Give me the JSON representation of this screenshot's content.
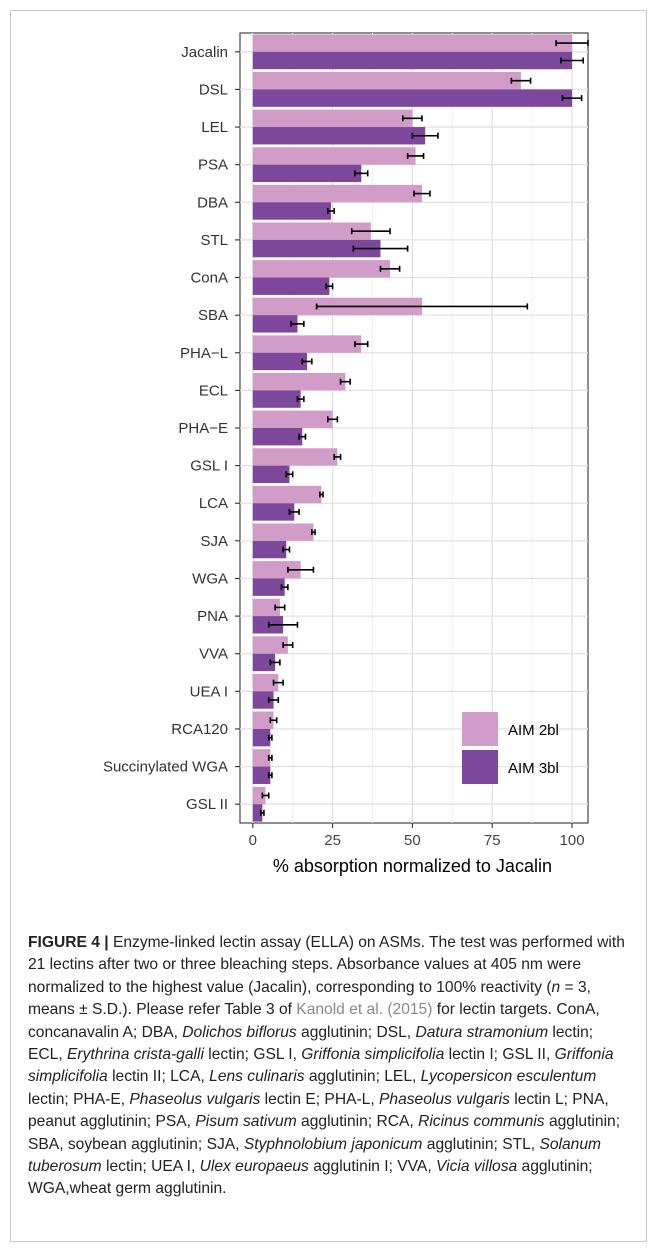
{
  "chart_data": {
    "type": "bar",
    "orientation": "horizontal",
    "categories": [
      "Jacalin",
      "DSL",
      "LEL",
      "PSA",
      "DBA",
      "STL",
      "ConA",
      "SBA",
      "PHA−L",
      "ECL",
      "PHA−E",
      "GSL I",
      "LCA",
      "SJA",
      "WGA",
      "PNA",
      "VVA",
      "UEA I",
      "RCA120",
      "Succinylated WGA",
      "GSL II"
    ],
    "series": [
      {
        "name": "AIM 2bl",
        "color": "#d19cc7",
        "values": [
          100,
          84,
          50,
          51,
          53,
          37,
          43,
          53,
          34,
          29,
          25,
          26.5,
          21.5,
          19,
          15,
          8.5,
          11,
          8,
          6.5,
          5.5,
          4
        ],
        "errors": [
          5,
          3,
          3,
          2.5,
          2.5,
          6,
          3,
          33,
          2,
          1.5,
          1.5,
          1,
          0.5,
          0.5,
          4,
          1.5,
          1.5,
          1.5,
          1,
          0.5,
          1
        ]
      },
      {
        "name": "AIM 3bl",
        "color": "#7d479c",
        "values": [
          100,
          100,
          54,
          34,
          24.5,
          40,
          24,
          14,
          17,
          15,
          15.5,
          11.5,
          13,
          10.5,
          10,
          9.5,
          7,
          6.5,
          5.5,
          5.5,
          3
        ],
        "errors": [
          3.5,
          3,
          4,
          2,
          1,
          8.5,
          1,
          2,
          1.5,
          1,
          1,
          1,
          1.5,
          1,
          1,
          4.5,
          1.5,
          1.5,
          0.5,
          0.5,
          0.5
        ]
      }
    ],
    "x_ticks": [
      0,
      25,
      50,
      75,
      100
    ],
    "xlim": [
      -4,
      105
    ],
    "xlabel": "% absorption normalized to Jacalin",
    "ylabel": "",
    "grid": true,
    "legend_position": "bottom-right"
  },
  "caption": {
    "label": "FIGURE 4 |",
    "parts": [
      {
        "t": " Enzyme-linked lectin assay (ELLA) on ASMs. The test was performed with 21 lectins after two or three bleaching steps. Absorbance values at 405 nm were normalized to the highest value (Jacalin), corresponding to 100% reactivity ("
      },
      {
        "t": "n",
        "i": true
      },
      {
        "t": " = 3, means ± S.D.). Please refer Table 3 of "
      },
      {
        "t": "Kanold et al. (2015)",
        "ref": true
      },
      {
        "t": " for lectin targets. ConA, concanavalin A; DBA, "
      },
      {
        "t": "Dolichos biflorus",
        "i": true
      },
      {
        "t": " agglutinin; DSL, "
      },
      {
        "t": "Datura stramonium",
        "i": true
      },
      {
        "t": " lectin; ECL, "
      },
      {
        "t": "Erythrina crista-galli",
        "i": true
      },
      {
        "t": " lectin; GSL I, "
      },
      {
        "t": "Griffonia simplicifolia",
        "i": true
      },
      {
        "t": " lectin I; GSL II, "
      },
      {
        "t": "Griffonia simplicifolia",
        "i": true
      },
      {
        "t": " lectin II; LCA, "
      },
      {
        "t": "Lens culinaris",
        "i": true
      },
      {
        "t": " agglutinin; LEL, "
      },
      {
        "t": "Lycopersicon esculentum",
        "i": true
      },
      {
        "t": " lectin; PHA-E, "
      },
      {
        "t": "Phaseolus vulgaris",
        "i": true
      },
      {
        "t": " lectin E; PHA-L, "
      },
      {
        "t": "Phaseolus vulgaris",
        "i": true
      },
      {
        "t": " lectin L; PNA, peanut agglutinin; PSA, "
      },
      {
        "t": "Pisum sativum",
        "i": true
      },
      {
        "t": " agglutinin; RCA, "
      },
      {
        "t": "Ricinus communis",
        "i": true
      },
      {
        "t": " agglutinin; SBA, soybean agglutinin; SJA, "
      },
      {
        "t": "Styphnolobium japonicum",
        "i": true
      },
      {
        "t": " agglutinin; STL, "
      },
      {
        "t": "Solanum tuberosum",
        "i": true
      },
      {
        "t": " lectin; UEA I, "
      },
      {
        "t": "Ulex europaeus",
        "i": true
      },
      {
        "t": " agglutinin I; VVA, "
      },
      {
        "t": "Vicia villosa",
        "i": true
      },
      {
        "t": " agglutinin; WGA,wheat germ agglutinin."
      }
    ]
  }
}
